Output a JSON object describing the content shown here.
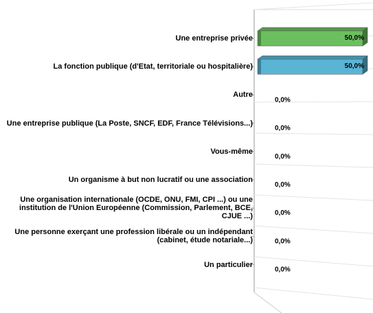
{
  "chart_data": {
    "type": "bar",
    "orientation": "horizontal",
    "three_d": true,
    "categories": [
      "Une entreprise privée",
      "La fonction publique (d'Etat, territoriale ou hospitalière)",
      "Autre",
      "Une entreprise publique (La Poste, SNCF, EDF, France Télévisions...)",
      "Vous-même",
      "Un organisme à but non lucratif ou une association",
      "Une organisation internationale (OCDE, ONU, FMI, CPI ...) ou une institution de l'Union Européenne (Commission, Parlement, BCE, CJUE ...)",
      "Une personne exerçant une profession libérale ou un indépendant (cabinet, étude notariale...)",
      "Un particulier"
    ],
    "values": [
      50,
      50,
      0,
      0,
      0,
      0,
      0,
      0,
      0
    ],
    "value_labels": [
      "50,0%",
      "50,0%",
      "0,0%",
      "0,0%",
      "0,0%",
      "0,0%",
      "0,0%",
      "0,0%",
      "0,0%"
    ],
    "colors": [
      "#6cbf5f",
      "#5ab4d4"
    ]
  }
}
